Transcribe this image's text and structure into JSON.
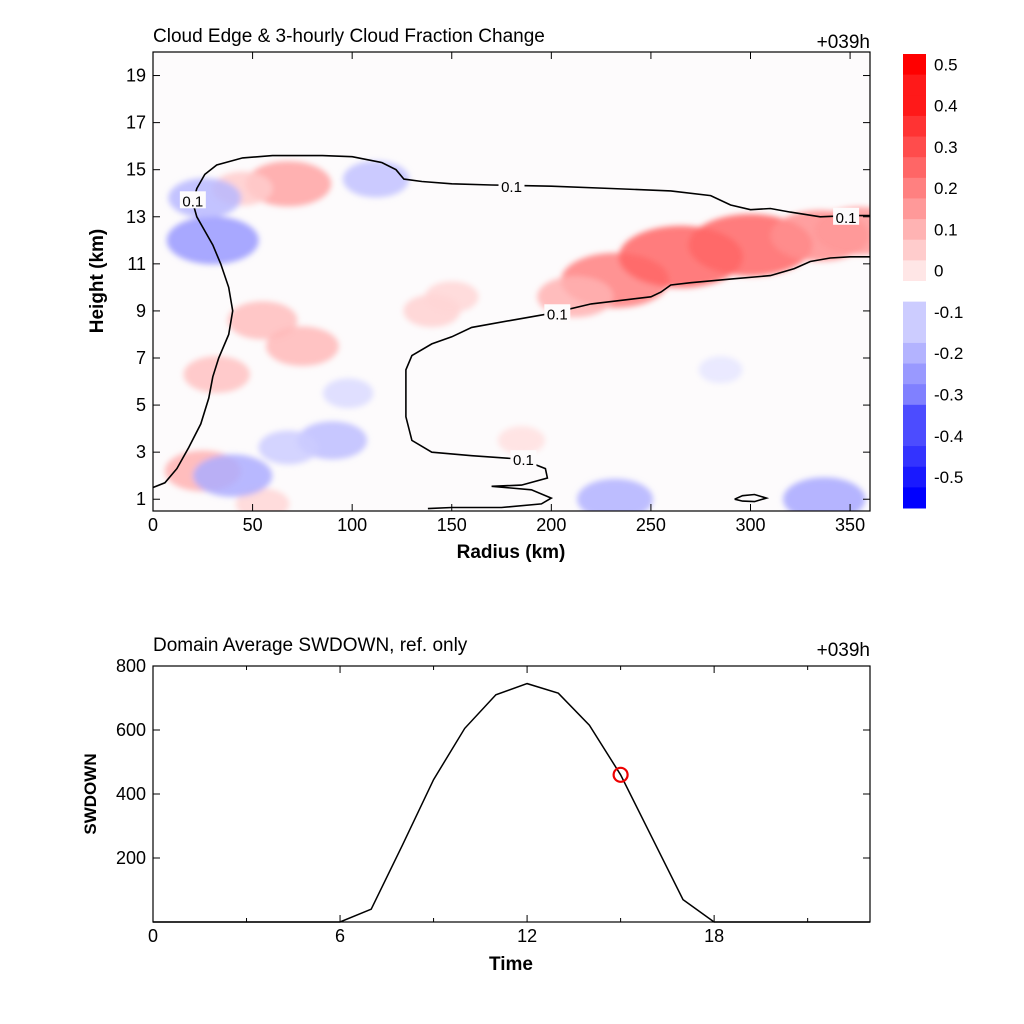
{
  "figure": {
    "top": {
      "title": "Cloud Edge & 3-hourly Cloud Fraction Change",
      "timestamp": "+039h"
    },
    "bottom": {
      "title": "Domain Average SWDOWN, ref. only",
      "timestamp": "+039h"
    }
  },
  "chart_data": [
    {
      "type": "heatmap",
      "title": "Cloud Edge & 3-hourly Cloud Fraction Change",
      "xlabel": "Radius (km)",
      "ylabel": "Height (km)",
      "xlim": [
        0,
        360
      ],
      "ylim": [
        0.5,
        20
      ],
      "xticks": [
        0,
        50,
        100,
        150,
        200,
        250,
        300,
        350
      ],
      "yticks": [
        1,
        3,
        5,
        7,
        9,
        11,
        13,
        15,
        17,
        19
      ],
      "grid": false,
      "colorbar": {
        "levels": [
          -0.5,
          -0.4,
          -0.3,
          -0.2,
          -0.1,
          0,
          0.1,
          0.2,
          0.3,
          0.4,
          0.5
        ],
        "tick_labels": [
          "-0.5",
          "-0.4",
          "-0.3",
          "-0.2",
          "-0.1",
          "0",
          "0.1",
          "0.2",
          "0.3",
          "0.4",
          "0.5"
        ],
        "low_color": "#0000ff",
        "high_color": "#ff0000"
      },
      "contour_level_label": "0.1",
      "contour_label_points": [
        {
          "r": 20,
          "z": 13.7
        },
        {
          "r": 180,
          "z": 14.3
        },
        {
          "r": 348,
          "z": 13.0
        },
        {
          "r": 203,
          "z": 8.9
        },
        {
          "r": 186,
          "z": 2.7
        }
      ],
      "cloud_edge_contours": [
        [
          [
            0,
            1.5
          ],
          [
            6,
            1.7
          ],
          [
            12,
            2.3
          ],
          [
            18,
            3.2
          ],
          [
            24,
            4.2
          ],
          [
            28,
            5.3
          ],
          [
            30,
            6.2
          ],
          [
            33,
            7.0
          ],
          [
            38,
            8.0
          ],
          [
            40,
            9.0
          ],
          [
            38,
            10.0
          ],
          [
            34,
            11.0
          ],
          [
            30,
            11.8
          ],
          [
            26,
            12.4
          ],
          [
            22,
            13.0
          ],
          [
            20,
            13.6
          ],
          [
            22,
            14.2
          ],
          [
            26,
            14.8
          ],
          [
            32,
            15.2
          ],
          [
            45,
            15.5
          ],
          [
            60,
            15.6
          ],
          [
            85,
            15.6
          ],
          [
            100,
            15.55
          ],
          [
            115,
            15.3
          ],
          [
            122,
            15.0
          ],
          [
            126,
            14.6
          ],
          [
            135,
            14.5
          ],
          [
            150,
            14.4
          ],
          [
            170,
            14.35
          ],
          [
            200,
            14.3
          ],
          [
            230,
            14.2
          ],
          [
            260,
            14.1
          ],
          [
            280,
            13.9
          ],
          [
            290,
            13.5
          ],
          [
            300,
            13.3
          ],
          [
            310,
            13.35
          ],
          [
            320,
            13.2
          ],
          [
            335,
            13.0
          ],
          [
            350,
            13.05
          ],
          [
            360,
            13.05
          ]
        ],
        [
          [
            360,
            11.3
          ],
          [
            350,
            11.3
          ],
          [
            340,
            11.25
          ],
          [
            330,
            11.1
          ],
          [
            322,
            10.8
          ],
          [
            310,
            10.5
          ],
          [
            290,
            10.35
          ],
          [
            270,
            10.2
          ],
          [
            260,
            10.1
          ],
          [
            255,
            9.8
          ],
          [
            250,
            9.6
          ],
          [
            240,
            9.5
          ],
          [
            220,
            9.3
          ],
          [
            200,
            8.9
          ],
          [
            180,
            8.6
          ],
          [
            160,
            8.3
          ],
          [
            150,
            7.9
          ],
          [
            140,
            7.6
          ],
          [
            130,
            7.1
          ],
          [
            127,
            6.5
          ],
          [
            127,
            5.5
          ],
          [
            127,
            4.5
          ],
          [
            130,
            3.5
          ],
          [
            140,
            3.0
          ],
          [
            160,
            2.85
          ],
          [
            185,
            2.7
          ],
          [
            197,
            2.3
          ],
          [
            198,
            1.9
          ],
          [
            185,
            1.6
          ],
          [
            170,
            1.55
          ],
          [
            190,
            1.4
          ],
          [
            200,
            1.05
          ],
          [
            195,
            0.8
          ],
          [
            175,
            0.65
          ],
          [
            150,
            0.65
          ],
          [
            138,
            0.6
          ]
        ],
        [
          [
            292,
            1.0
          ],
          [
            296,
            1.15
          ],
          [
            302,
            1.2
          ],
          [
            308,
            1.05
          ],
          [
            302,
            0.9
          ],
          [
            296,
            0.92
          ],
          [
            292,
            1.0
          ]
        ]
      ],
      "anomaly_blobs": [
        {
          "r": 25,
          "z": 2.2,
          "value": 0.15
        },
        {
          "r": 32,
          "z": 6.3,
          "value": 0.12
        },
        {
          "r": 55,
          "z": 8.6,
          "value": 0.13
        },
        {
          "r": 68,
          "z": 14.4,
          "value": 0.18
        },
        {
          "r": 45,
          "z": 14.2,
          "value": 0.1
        },
        {
          "r": 75,
          "z": 7.5,
          "value": 0.14
        },
        {
          "r": 140,
          "z": 9.0,
          "value": 0.09
        },
        {
          "r": 150,
          "z": 9.6,
          "value": 0.08
        },
        {
          "r": 232,
          "z": 10.3,
          "value": 0.25
        },
        {
          "r": 265,
          "z": 11.3,
          "value": 0.3
        },
        {
          "r": 300,
          "z": 11.8,
          "value": 0.3
        },
        {
          "r": 335,
          "z": 12.2,
          "value": 0.22
        },
        {
          "r": 355,
          "z": 12.4,
          "value": 0.2
        },
        {
          "r": 212,
          "z": 9.6,
          "value": 0.15
        },
        {
          "r": 185,
          "z": 3.5,
          "value": 0.06
        },
        {
          "r": 55,
          "z": 0.8,
          "value": 0.08
        },
        {
          "r": 30,
          "z": 12.0,
          "value": -0.2
        },
        {
          "r": 26,
          "z": 13.8,
          "value": -0.14
        },
        {
          "r": 40,
          "z": 2.0,
          "value": -0.16
        },
        {
          "r": 90,
          "z": 3.5,
          "value": -0.13
        },
        {
          "r": 68,
          "z": 3.2,
          "value": -0.1
        },
        {
          "r": 112,
          "z": 14.6,
          "value": -0.12
        },
        {
          "r": 232,
          "z": 1.0,
          "value": -0.15
        },
        {
          "r": 337,
          "z": 1.0,
          "value": -0.17
        },
        {
          "r": 98,
          "z": 5.5,
          "value": -0.07
        },
        {
          "r": 285,
          "z": 6.5,
          "value": -0.05
        }
      ]
    },
    {
      "type": "line",
      "title": "Domain Average SWDOWN, ref. only",
      "xlabel": "Time",
      "ylabel": "SWDOWN",
      "xlim": [
        0,
        23
      ],
      "ylim": [
        0,
        800
      ],
      "xticks": [
        0,
        6,
        12,
        18
      ],
      "yticks": [
        200,
        400,
        600,
        800
      ],
      "grid": false,
      "series": [
        {
          "x": [
            0,
            1,
            2,
            3,
            4,
            5,
            6,
            7,
            8,
            9,
            10,
            11,
            12,
            13,
            14,
            15,
            16,
            17,
            18,
            19,
            20,
            21,
            22,
            23
          ],
          "values": [
            0,
            0,
            0,
            0,
            0,
            0,
            0,
            40,
            240,
            445,
            605,
            710,
            745,
            715,
            615,
            460,
            265,
            70,
            0,
            0,
            0,
            0,
            0,
            0
          ],
          "color": "#000000"
        }
      ],
      "marker": {
        "x": 15,
        "y": 460,
        "color": "#ee0000"
      }
    }
  ]
}
